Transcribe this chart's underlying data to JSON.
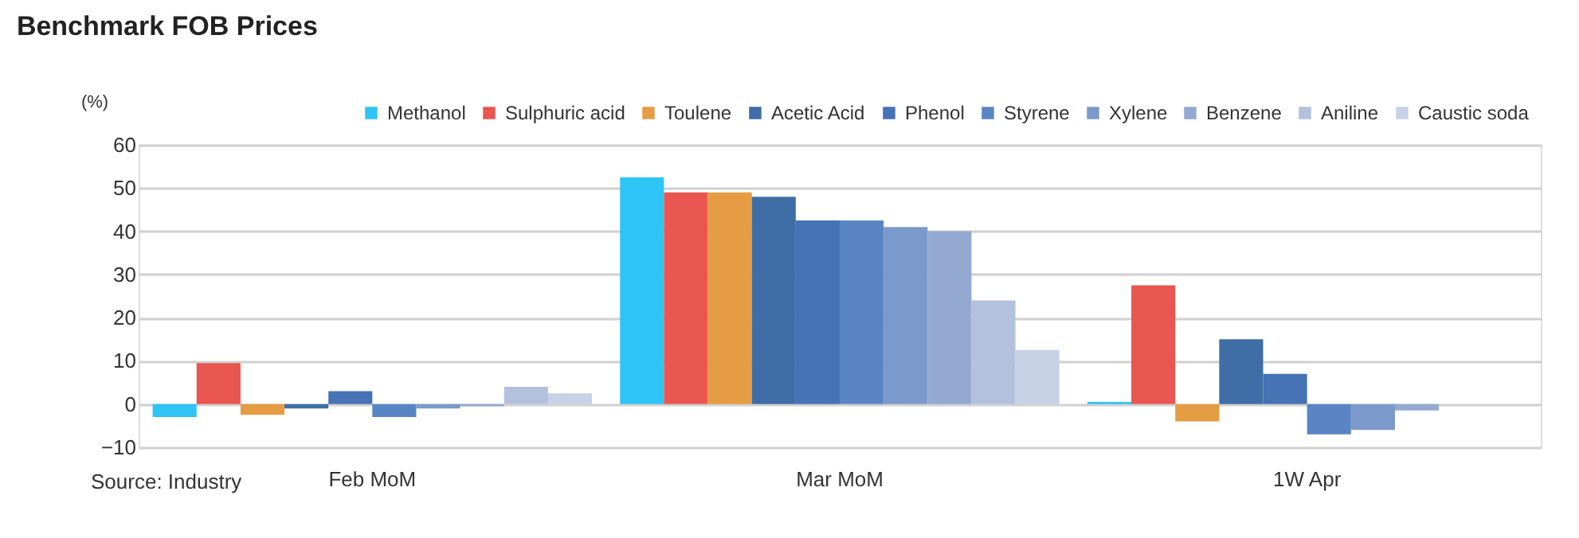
{
  "chart_data": {
    "type": "bar",
    "title": "Benchmark FOB Prices",
    "ylabel": "(%)",
    "categories": [
      "Feb MoM",
      "Mar MoM",
      "1W Apr"
    ],
    "series": [
      {
        "name": "Methanol",
        "color": "#2ec4f5",
        "values": [
          -3,
          52.5,
          0.5
        ]
      },
      {
        "name": "Sulphuric acid",
        "color": "#e8564f",
        "values": [
          9.5,
          49,
          27.5
        ]
      },
      {
        "name": "Toulene",
        "color": "#e59c42",
        "values": [
          -2.5,
          49,
          -4
        ]
      },
      {
        "name": "Acetic Acid",
        "color": "#3e6ea5",
        "values": [
          -1,
          48,
          15
        ]
      },
      {
        "name": "Phenol",
        "color": "#4573b5",
        "values": [
          3,
          42.5,
          7
        ]
      },
      {
        "name": "Styrene",
        "color": "#5a85c4",
        "values": [
          -3,
          42.5,
          -7
        ]
      },
      {
        "name": "Xylene",
        "color": "#7b9acb",
        "values": [
          -1,
          41,
          -6
        ]
      },
      {
        "name": "Benzene",
        "color": "#93a9d1",
        "values": [
          -0.5,
          40,
          -1.5
        ]
      },
      {
        "name": "Aniline",
        "color": "#b4c1dd",
        "values": [
          4,
          24,
          null
        ]
      },
      {
        "name": "Caustic soda",
        "color": "#c8d2e6",
        "values": [
          2.5,
          12.5,
          null
        ]
      }
    ],
    "ylim": [
      -10,
      60
    ],
    "yticks": [
      -10,
      0,
      10,
      20,
      30,
      40,
      50,
      60
    ],
    "grid": "y",
    "legend": "top right",
    "annotations": [
      "Source: Industry"
    ]
  }
}
